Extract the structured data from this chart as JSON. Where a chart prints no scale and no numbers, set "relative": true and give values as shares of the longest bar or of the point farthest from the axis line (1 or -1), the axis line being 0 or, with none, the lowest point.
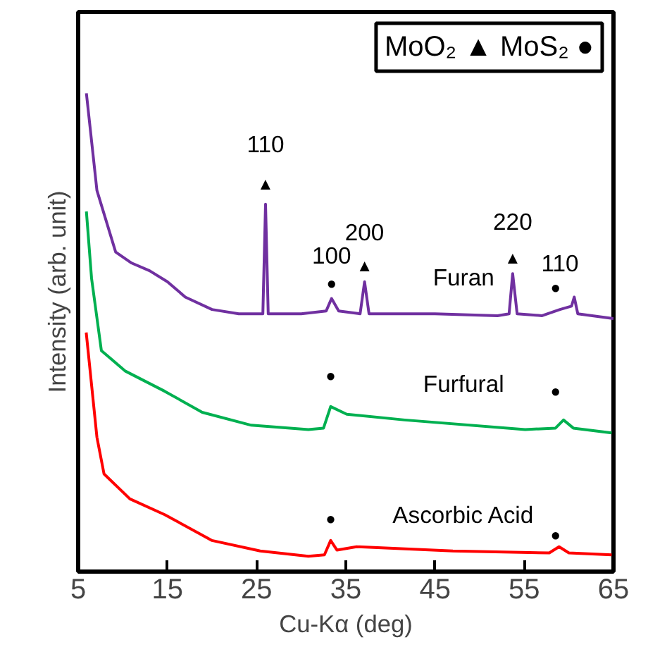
{
  "chart_data": {
    "type": "line",
    "relative": true,
    "xlabel": "Cu-Kα (deg)",
    "ylabel": "Intensity (arb. unit)",
    "xlim": [
      5,
      65
    ],
    "xticks": [
      5,
      15,
      25,
      35,
      45,
      55,
      65
    ],
    "tick_labels": "x",
    "marker": "none",
    "line_style": "solid",
    "series": [
      {
        "name": "Furan",
        "color": "#7030a0",
        "x": [
          5.92,
          7.1,
          9.2,
          11,
          13,
          15,
          17,
          20,
          23,
          25.7,
          26.0,
          26.3,
          30,
          32.8,
          33.4,
          34.2,
          36.6,
          37.1,
          37.6,
          45,
          52,
          53.3,
          53.7,
          54.2,
          57,
          59,
          60.3,
          60.6,
          61,
          65
        ],
        "values": [
          1.0,
          0.797,
          0.668,
          0.645,
          0.629,
          0.606,
          0.574,
          0.548,
          0.539,
          0.539,
          0.768,
          0.539,
          0.539,
          0.545,
          0.571,
          0.545,
          0.539,
          0.606,
          0.539,
          0.539,
          0.535,
          0.539,
          0.623,
          0.539,
          0.535,
          0.548,
          0.555,
          0.574,
          0.539,
          0.529
        ]
      },
      {
        "name": "Furfural",
        "color": "#00b050",
        "x": [
          5.92,
          6.5,
          7.6,
          10.3,
          14.7,
          18.9,
          24.4,
          30.8,
          32.5,
          33.3,
          35.1,
          41.6,
          55.1,
          58.5,
          59.4,
          60.5,
          64.8
        ],
        "values": [
          0.753,
          0.613,
          0.462,
          0.419,
          0.377,
          0.333,
          0.306,
          0.297,
          0.3,
          0.345,
          0.329,
          0.317,
          0.297,
          0.3,
          0.317,
          0.3,
          0.29
        ]
      },
      {
        "name": "Ascorbic Acid",
        "color": "#ff0000",
        "x": [
          5.9,
          7.1,
          7.9,
          10.8,
          14.7,
          20,
          25.4,
          30.8,
          32.6,
          33.3,
          34,
          36.2,
          47,
          57.8,
          58.9,
          60,
          64.8
        ],
        "values": [
          0.5,
          0.281,
          0.204,
          0.152,
          0.119,
          0.065,
          0.043,
          0.032,
          0.035,
          0.065,
          0.045,
          0.052,
          0.043,
          0.039,
          0.052,
          0.039,
          0.035
        ]
      }
    ],
    "annotations": [
      "MoO₂ ▲ MoS₂ ●",
      "110",
      "▲",
      "100",
      "●",
      "200",
      "▲",
      "220",
      "▲",
      "110",
      "●",
      "●",
      "●",
      "●",
      "●"
    ]
  }
}
